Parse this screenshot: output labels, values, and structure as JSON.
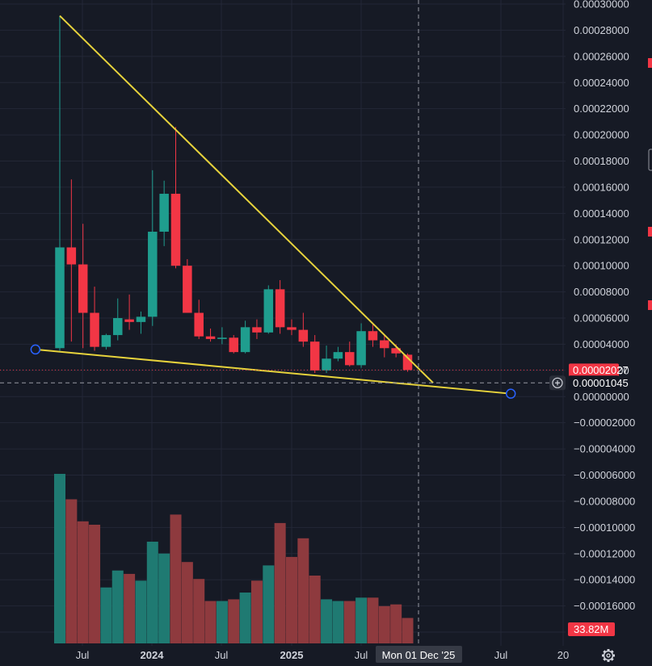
{
  "chart_data": {
    "type": "candlestick",
    "interval": "monthly",
    "y_axis": {
      "min": -0.00018,
      "max": 0.0003,
      "tick_step": 2e-05,
      "decimals": 8,
      "bottom_tick_label": "8000"
    },
    "x_axis": {
      "tick_labels": [
        "Jul",
        "2024",
        "Jul",
        "2025",
        "Jul",
        "Jul",
        "20"
      ]
    },
    "price_marks": [
      {
        "label": "0.00002027",
        "value": 2.027e-05,
        "color": "#f23645"
      },
      {
        "label": "0.00001045",
        "value": 1.045e-05,
        "color": "#131722"
      }
    ],
    "crosshair_date_label": "Mon 01 Dec '25",
    "volume_label": "33.82M",
    "candles": [
      {
        "o": 3.7e-05,
        "h": 0.000291,
        "l": 3.5e-05,
        "c": 0.000114,
        "v": 100
      },
      {
        "o": 0.000114,
        "h": 0.000166,
        "l": 4.2e-05,
        "c": 0.000101,
        "v": 85
      },
      {
        "o": 0.000101,
        "h": 0.000132,
        "l": 3.7e-05,
        "c": 6.4e-05,
        "v": 72
      },
      {
        "o": 6.4e-05,
        "h": 8.4e-05,
        "l": 3.5e-05,
        "c": 3.8e-05,
        "v": 70
      },
      {
        "o": 3.8e-05,
        "h": 4.8e-05,
        "l": 3.6e-05,
        "c": 4.7e-05,
        "v": 33
      },
      {
        "o": 4.7e-05,
        "h": 7.5e-05,
        "l": 4.3e-05,
        "c": 6e-05,
        "v": 43
      },
      {
        "o": 5.9e-05,
        "h": 7.8e-05,
        "l": 5.1e-05,
        "c": 5.7e-05,
        "v": 41
      },
      {
        "o": 5.7e-05,
        "h": 6.5e-05,
        "l": 4.8e-05,
        "c": 6.1e-05,
        "v": 37
      },
      {
        "o": 6.1e-05,
        "h": 0.000173,
        "l": 5.4e-05,
        "c": 0.000126,
        "v": 60
      },
      {
        "o": 0.000126,
        "h": 0.000165,
        "l": 0.000115,
        "c": 0.000155,
        "v": 53
      },
      {
        "o": 0.000155,
        "h": 0.000206,
        "l": 9.8e-05,
        "c": 0.0001,
        "v": 76
      },
      {
        "o": 0.0001,
        "h": 0.000105,
        "l": 6.4e-05,
        "c": 6.4e-05,
        "v": 48
      },
      {
        "o": 6.4e-05,
        "h": 7.4e-05,
        "l": 4.4e-05,
        "c": 4.6e-05,
        "v": 38
      },
      {
        "o": 4.6e-05,
        "h": 5.2e-05,
        "l": 4.2e-05,
        "c": 4.4e-05,
        "v": 25
      },
      {
        "o": 4.4e-05,
        "h": 5.3e-05,
        "l": 4e-05,
        "c": 4.5e-05,
        "v": 25
      },
      {
        "o": 4.5e-05,
        "h": 4.7e-05,
        "l": 3.3e-05,
        "c": 3.4e-05,
        "v": 26
      },
      {
        "o": 3.4e-05,
        "h": 5.8e-05,
        "l": 3.3e-05,
        "c": 5.3e-05,
        "v": 30
      },
      {
        "o": 5.3e-05,
        "h": 5.9e-05,
        "l": 4.4e-05,
        "c": 4.9e-05,
        "v": 37
      },
      {
        "o": 4.9e-05,
        "h": 8.5e-05,
        "l": 4.8e-05,
        "c": 8.2e-05,
        "v": 46
      },
      {
        "o": 8.2e-05,
        "h": 8.9e-05,
        "l": 4.8e-05,
        "c": 5.3e-05,
        "v": 71
      },
      {
        "o": 5.3e-05,
        "h": 5.9e-05,
        "l": 4.7e-05,
        "c": 5.1e-05,
        "v": 51
      },
      {
        "o": 5.1e-05,
        "h": 6.4e-05,
        "l": 3.8e-05,
        "c": 4.2e-05,
        "v": 62
      },
      {
        "o": 4.2e-05,
        "h": 4.7e-05,
        "l": 1.8e-05,
        "c": 2e-05,
        "v": 40
      },
      {
        "o": 2e-05,
        "h": 3.9e-05,
        "l": 1.8e-05,
        "c": 2.9e-05,
        "v": 26
      },
      {
        "o": 2.9e-05,
        "h": 3.8e-05,
        "l": 2.7e-05,
        "c": 3.4e-05,
        "v": 25
      },
      {
        "o": 3.4e-05,
        "h": 4.2e-05,
        "l": 2.3e-05,
        "c": 2.4e-05,
        "v": 25
      },
      {
        "o": 2.4e-05,
        "h": 5.6e-05,
        "l": 2.2e-05,
        "c": 5e-05,
        "v": 27
      },
      {
        "o": 5e-05,
        "h": 5.5e-05,
        "l": 3.8e-05,
        "c": 4.3e-05,
        "v": 27
      },
      {
        "o": 4.3e-05,
        "h": 4.7e-05,
        "l": 3e-05,
        "c": 3.7e-05,
        "v": 22
      },
      {
        "o": 3.7e-05,
        "h": 4e-05,
        "l": 3e-05,
        "c": 3.3e-05,
        "v": 23
      },
      {
        "o": 3.2e-05,
        "h": 3.3e-05,
        "l": 1.9e-05,
        "c": 2.03e-05,
        "v": 15
      }
    ],
    "trendlines": [
      {
        "name": "upper",
        "p1": {
          "i": 0,
          "price": 0.000291
        },
        "p2": {
          "i": 32.2,
          "price": 1.05e-05
        },
        "color": "#e7d33c"
      },
      {
        "name": "lower",
        "p1": {
          "i": -2.1,
          "price": 3.6e-05
        },
        "p2": {
          "i": 38.9,
          "price": 2.2e-06
        },
        "color": "#e7d33c",
        "show_handles": true
      }
    ],
    "colors": {
      "up": "#1f9d8e",
      "down": "#f23645",
      "volume_up": "#1f7a72",
      "volume_down": "#8e3a3e",
      "grid": "#232736",
      "axis_text": "#d1d4dc",
      "crosshair": "#9598a1",
      "trendline": "#e7d33c",
      "background": "#161a25"
    }
  }
}
